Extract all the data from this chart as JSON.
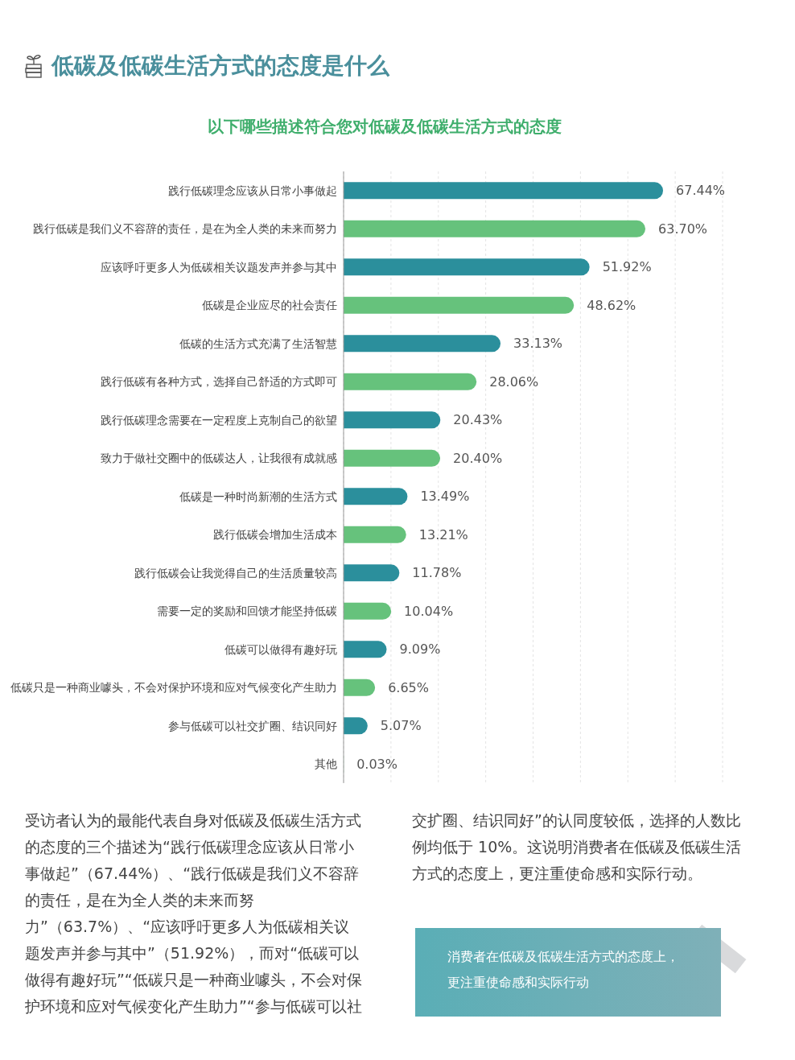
{
  "chart_data": {
    "type": "bar",
    "orientation": "horizontal",
    "title": "低碳及低碳生活方式的态度是什么",
    "subtitle": "以下哪些描述符合您对低碳及低碳生活方式的态度",
    "categories": [
      "践行低碳理念应该从日常小事做起",
      "践行低碳是我们义不容辞的责任，是在为全人类的未来而努力",
      "应该呼吁更多人为低碳相关议题发声并参与其中",
      "低碳是企业应尽的社会责任",
      "低碳的生活方式充满了生活智慧",
      "践行低碳有各种方式，选择自己舒适的方式即可",
      "践行低碳理念需要在一定程度上克制自己的欲望",
      "致力于做社交圈中的低碳达人，让我很有成就感",
      "低碳是一种时尚新潮的生活方式",
      "践行低碳会增加生活成本",
      "践行低碳会让我觉得自己的生活质量较高",
      "需要一定的奖励和回馈才能坚持低碳",
      "低碳可以做得有趣好玩",
      "低碳只是一种商业噱头，不会对保护环境和应对气候变化产生助力",
      "参与低碳可以社交扩圈、结识同好",
      "其他"
    ],
    "values": [
      67.44,
      63.7,
      51.92,
      48.62,
      33.13,
      28.06,
      20.43,
      20.4,
      13.49,
      13.21,
      11.78,
      10.04,
      9.09,
      6.65,
      5.07,
      0.03
    ],
    "value_labels": [
      "67.44%",
      "63.70%",
      "51.92%",
      "48.62%",
      "33.13%",
      "28.06%",
      "20.43%",
      "20.40%",
      "13.49%",
      "13.21%",
      "11.78%",
      "10.04%",
      "9.09%",
      "6.65%",
      "5.07%",
      "0.03%"
    ],
    "colors": [
      "#2b8f9c",
      "#66c27c",
      "#2b8f9c",
      "#66c27c",
      "#2b8f9c",
      "#66c27c",
      "#2b8f9c",
      "#66c27c",
      "#2b8f9c",
      "#66c27c",
      "#2b8f9c",
      "#66c27c",
      "#2b8f9c",
      "#66c27c",
      "#2b8f9c",
      "#66c27c"
    ],
    "xlim": [
      0,
      80
    ],
    "xticks": [
      {
        "value": 0,
        "label": null
      },
      {
        "value": 10,
        "label": null
      },
      {
        "value": 20,
        "label": null
      },
      {
        "value": 30,
        "label": null
      },
      {
        "value": 40,
        "label": null
      },
      {
        "value": 50,
        "label": null
      },
      {
        "value": 60,
        "label": null
      },
      {
        "value": 70,
        "label": null
      },
      {
        "value": 80,
        "label": null
      }
    ],
    "grid": "x",
    "tick_labels": "y",
    "annotations": [
      "受访者认为的最能代表自身对低碳及低碳生活方式的态度的三个描述为“践行低碳理念应该从日常小事做起”（67.44%）、“践行低碳是我们义不容辞的责任，是在为全人类的未来而努力”（63.7%）、“应该呼吁更多人为低碳相关议题发声并参与其中”（51.92%），而对“低碳可以做得有趣好玩”“低碳只是一种商业噱头，不会对保护环境和应对气候变化产生助力”“参与低碳可以社交扩圈、结识同好”的认同度较低，选择的人数比例均低于 10%。这说明消费者在低碳及低碳生活方式的态度上，更注重使命感和实际行动。",
      "消费者在低碳及低碳生活方式的态度上，更注重使命感和实际行动"
    ]
  }
}
